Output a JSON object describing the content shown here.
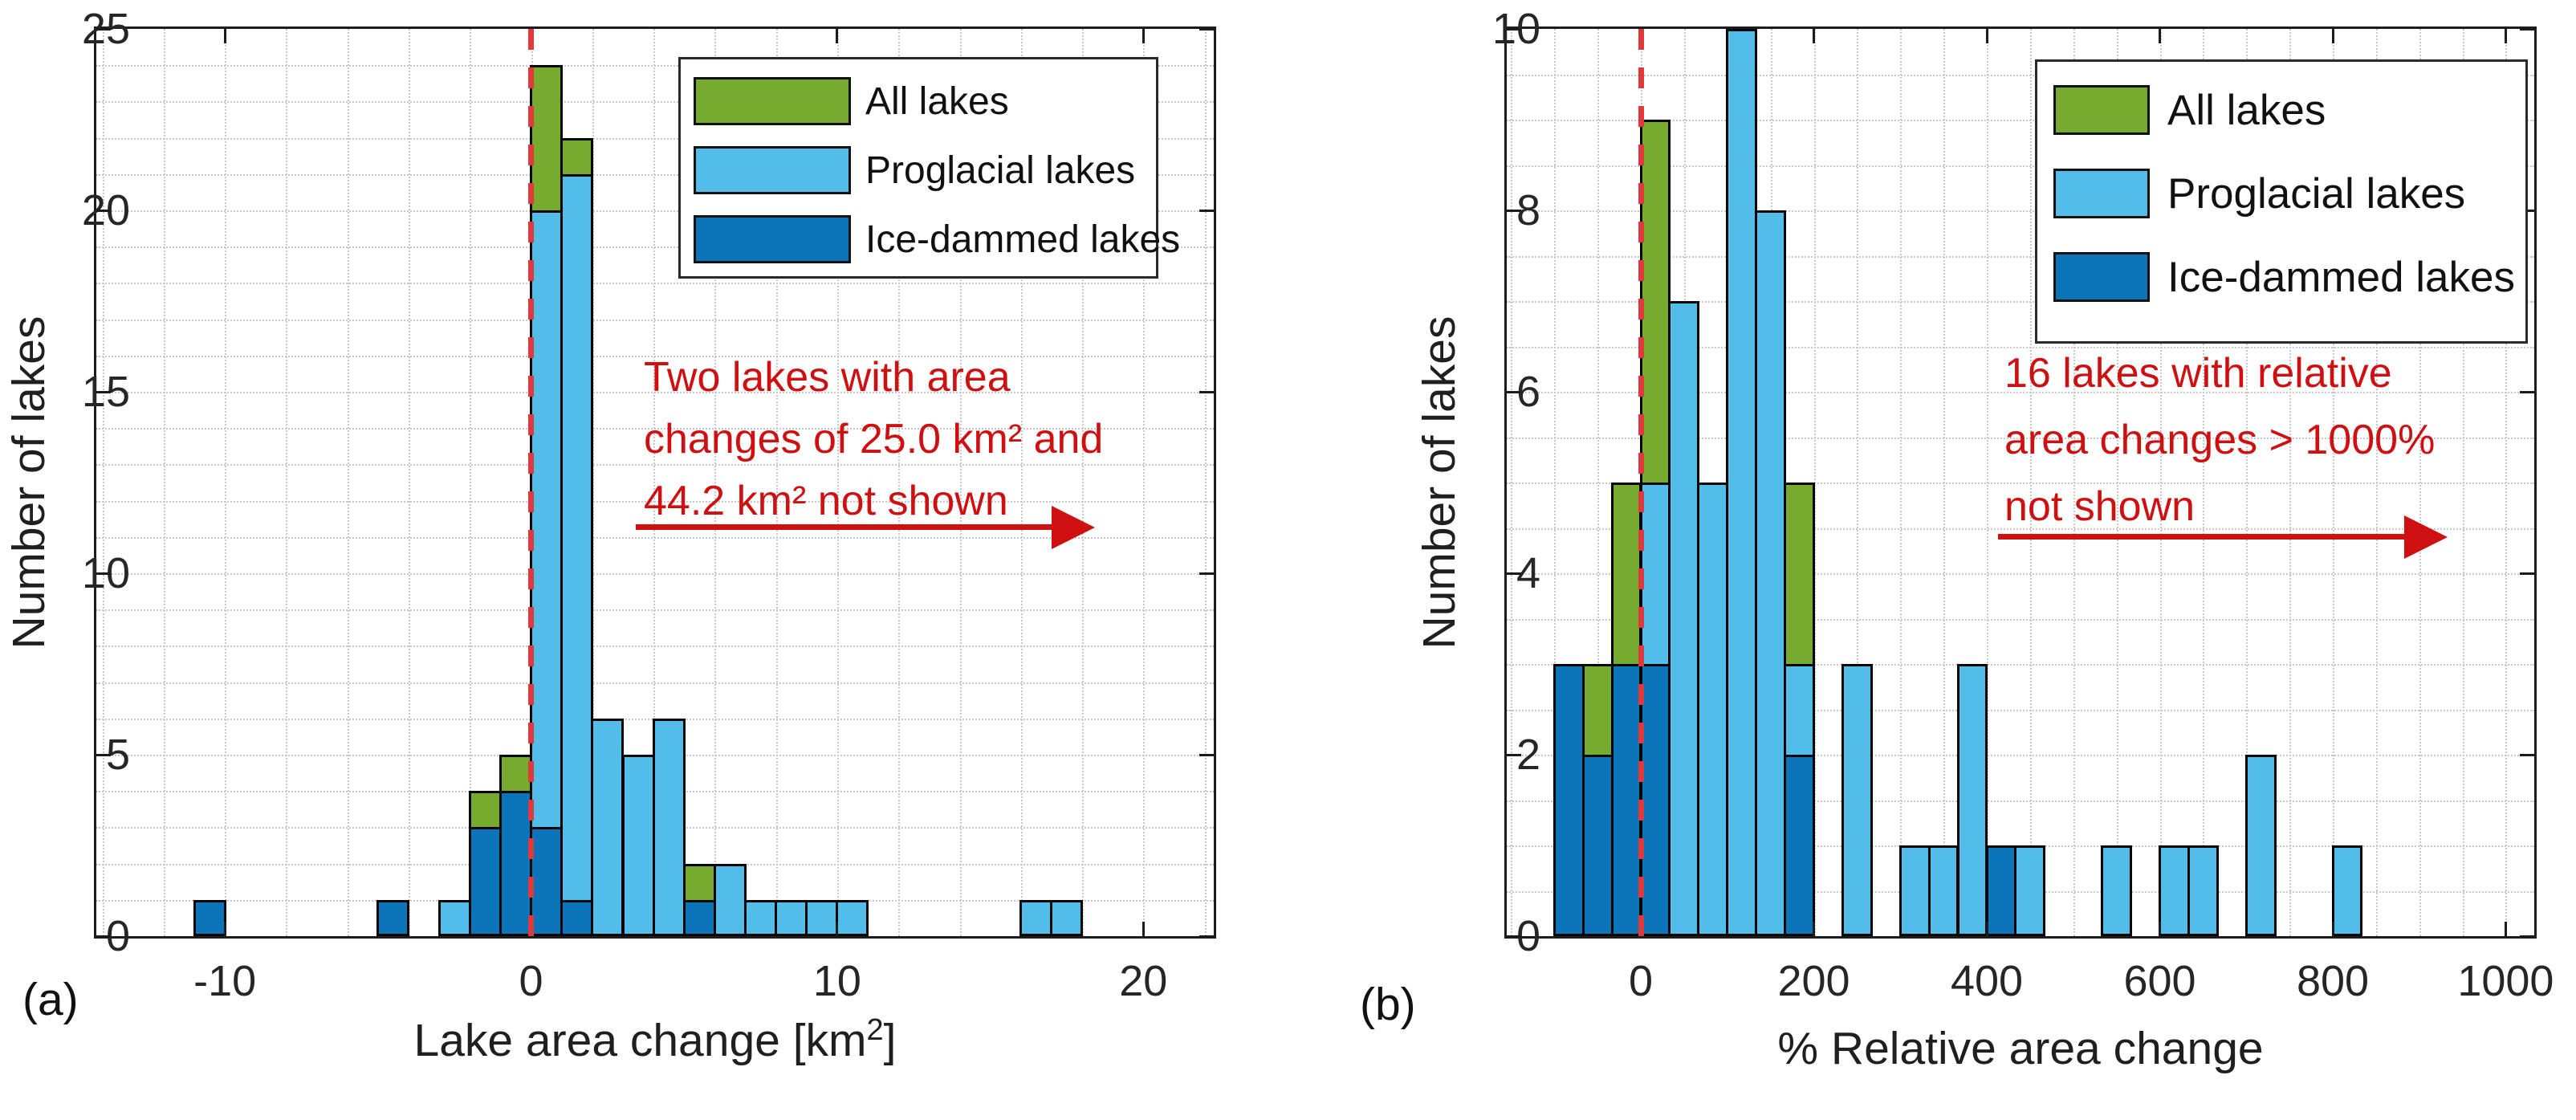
{
  "colors": {
    "all_lakes_green": "#77AB2F",
    "proglacial_light_blue": "#53BDE9",
    "ice_dammed_dark_blue": "#0C74B8",
    "bar_edge_black": "#050505",
    "zero_dashed_red": "#DE3A3C",
    "annotation_red": "#CE1011",
    "axis_text": "#262626",
    "grid_gray": "#C8C8C8"
  },
  "legend": {
    "items": [
      {
        "label": "All lakes",
        "color_key": "all_lakes_green",
        "color": "#77AB2F"
      },
      {
        "label": "Proglacial lakes",
        "color_key": "proglacial_light_blue",
        "color": "#53BDE9"
      },
      {
        "label": "Ice-dammed lakes",
        "color_key": "ice_dammed_dark_blue",
        "color": "#0C74B8"
      }
    ]
  },
  "chart_data": [
    {
      "panel_label": "(a)",
      "type": "bar",
      "subtype": "overlaid-histogram",
      "xlabel_main": "Lake area change [km",
      "xlabel_sup": "2",
      "xlabel_end": "]",
      "ylabel": "Number of lakes",
      "xlim": [
        -14.2,
        22.3
      ],
      "ylim": [
        0,
        25
      ],
      "xticks": [
        -10,
        0,
        10,
        20
      ],
      "yticks": [
        0,
        5,
        10,
        15,
        20,
        25
      ],
      "x_minor_grid_step": 2,
      "y_minor_grid_step": 1,
      "zero_line_x": 0,
      "bin_width": 1,
      "legend_position": "top-right",
      "grid": "dotted",
      "series_legend": [
        "All lakes",
        "Proglacial lakes",
        "Ice-dammed lakes"
      ],
      "bins": [
        {
          "x0": -11,
          "x1": -10,
          "ice_dammed": 1,
          "proglacial": 0,
          "all": 1
        },
        {
          "x0": -5,
          "x1": -4,
          "ice_dammed": 1,
          "proglacial": 0,
          "all": 1
        },
        {
          "x0": -3,
          "x1": -2,
          "ice_dammed": 0,
          "proglacial": 1,
          "all": 1
        },
        {
          "x0": -2,
          "x1": -1,
          "ice_dammed": 3,
          "proglacial": 3,
          "all": 4
        },
        {
          "x0": -1,
          "x1": 0,
          "ice_dammed": 4,
          "proglacial": 4,
          "all": 5
        },
        {
          "x0": 0,
          "x1": 1,
          "ice_dammed": 3,
          "proglacial": 20,
          "all": 24
        },
        {
          "x0": 1,
          "x1": 2,
          "ice_dammed": 1,
          "proglacial": 21,
          "all": 22
        },
        {
          "x0": 2,
          "x1": 3,
          "ice_dammed": 0,
          "proglacial": 6,
          "all": 6
        },
        {
          "x0": 3,
          "x1": 4,
          "ice_dammed": 0,
          "proglacial": 5,
          "all": 5
        },
        {
          "x0": 4,
          "x1": 5,
          "ice_dammed": 0,
          "proglacial": 6,
          "all": 6
        },
        {
          "x0": 5,
          "x1": 6,
          "ice_dammed": 1,
          "proglacial": 1,
          "all": 2
        },
        {
          "x0": 6,
          "x1": 7,
          "ice_dammed": 0,
          "proglacial": 2,
          "all": 2
        },
        {
          "x0": 7,
          "x1": 8,
          "ice_dammed": 0,
          "proglacial": 1,
          "all": 1
        },
        {
          "x0": 8,
          "x1": 9,
          "ice_dammed": 0,
          "proglacial": 1,
          "all": 1
        },
        {
          "x0": 9,
          "x1": 10,
          "ice_dammed": 0,
          "proglacial": 1,
          "all": 1
        },
        {
          "x0": 10,
          "x1": 11,
          "ice_dammed": 0,
          "proglacial": 1,
          "all": 1
        },
        {
          "x0": 16,
          "x1": 17,
          "ice_dammed": 0,
          "proglacial": 1,
          "all": 1
        },
        {
          "x0": 17,
          "x1": 18,
          "ice_dammed": 0,
          "proglacial": 1,
          "all": 1
        }
      ],
      "annotation": {
        "lines": [
          "Two lakes with area",
          "changes of 25.0 km² and",
          "44.2 km² not shown"
        ],
        "arrow_direction": "right"
      }
    },
    {
      "panel_label": "(b)",
      "type": "bar",
      "subtype": "overlaid-histogram",
      "xlabel_main": "% Relative area change",
      "xlabel_sup": "",
      "xlabel_end": "",
      "ylabel": "Number of lakes",
      "xlim": [
        -155,
        1033
      ],
      "ylim": [
        0,
        10
      ],
      "xticks": [
        0,
        200,
        400,
        600,
        800,
        1000
      ],
      "yticks": [
        0,
        2,
        4,
        6,
        8,
        10
      ],
      "x_minor_grid_step": 50,
      "y_minor_grid_step": 0.5,
      "zero_line_x": 0,
      "bin_width": 33.33,
      "legend_position": "top-right",
      "grid": "dotted",
      "series_legend": [
        "All lakes",
        "Proglacial lakes",
        "Ice-dammed lakes"
      ],
      "bins": [
        {
          "x0": -100,
          "x1": -66.67,
          "ice_dammed": 3,
          "proglacial": 0,
          "all": 3
        },
        {
          "x0": -66.67,
          "x1": -33.33,
          "ice_dammed": 2,
          "proglacial": 0,
          "all": 3
        },
        {
          "x0": -33.33,
          "x1": 0,
          "ice_dammed": 3,
          "proglacial": 0,
          "all": 5
        },
        {
          "x0": 0,
          "x1": 33.33,
          "ice_dammed": 3,
          "proglacial": 5,
          "all": 9
        },
        {
          "x0": 33.33,
          "x1": 66.67,
          "ice_dammed": 0,
          "proglacial": 7,
          "all": 7
        },
        {
          "x0": 66.67,
          "x1": 100,
          "ice_dammed": 0,
          "proglacial": 5,
          "all": 5
        },
        {
          "x0": 100,
          "x1": 133.33,
          "ice_dammed": 0,
          "proglacial": 10,
          "all": 10
        },
        {
          "x0": 133.33,
          "x1": 166.67,
          "ice_dammed": 0,
          "proglacial": 8,
          "all": 8
        },
        {
          "x0": 166.67,
          "x1": 200,
          "ice_dammed": 2,
          "proglacial": 3,
          "all": 5
        },
        {
          "x0": 233.33,
          "x1": 266.67,
          "ice_dammed": 0,
          "proglacial": 3,
          "all": 3
        },
        {
          "x0": 300,
          "x1": 333.33,
          "ice_dammed": 0,
          "proglacial": 1,
          "all": 1
        },
        {
          "x0": 333.33,
          "x1": 366.67,
          "ice_dammed": 0,
          "proglacial": 1,
          "all": 1
        },
        {
          "x0": 366.67,
          "x1": 400,
          "ice_dammed": 0,
          "proglacial": 3,
          "all": 3
        },
        {
          "x0": 400,
          "x1": 433.33,
          "ice_dammed": 1,
          "proglacial": 0,
          "all": 1
        },
        {
          "x0": 433.33,
          "x1": 466.67,
          "ice_dammed": 0,
          "proglacial": 1,
          "all": 1
        },
        {
          "x0": 533.33,
          "x1": 566.67,
          "ice_dammed": 0,
          "proglacial": 1,
          "all": 1
        },
        {
          "x0": 600,
          "x1": 633.33,
          "ice_dammed": 0,
          "proglacial": 1,
          "all": 1
        },
        {
          "x0": 633.33,
          "x1": 666.67,
          "ice_dammed": 0,
          "proglacial": 1,
          "all": 1
        },
        {
          "x0": 700,
          "x1": 733.33,
          "ice_dammed": 0,
          "proglacial": 2,
          "all": 2
        },
        {
          "x0": 800,
          "x1": 833.33,
          "ice_dammed": 0,
          "proglacial": 1,
          "all": 1
        }
      ],
      "annotation": {
        "lines": [
          "16 lakes with relative",
          "area changes > 1000%",
          "not shown"
        ],
        "arrow_direction": "right"
      }
    }
  ]
}
